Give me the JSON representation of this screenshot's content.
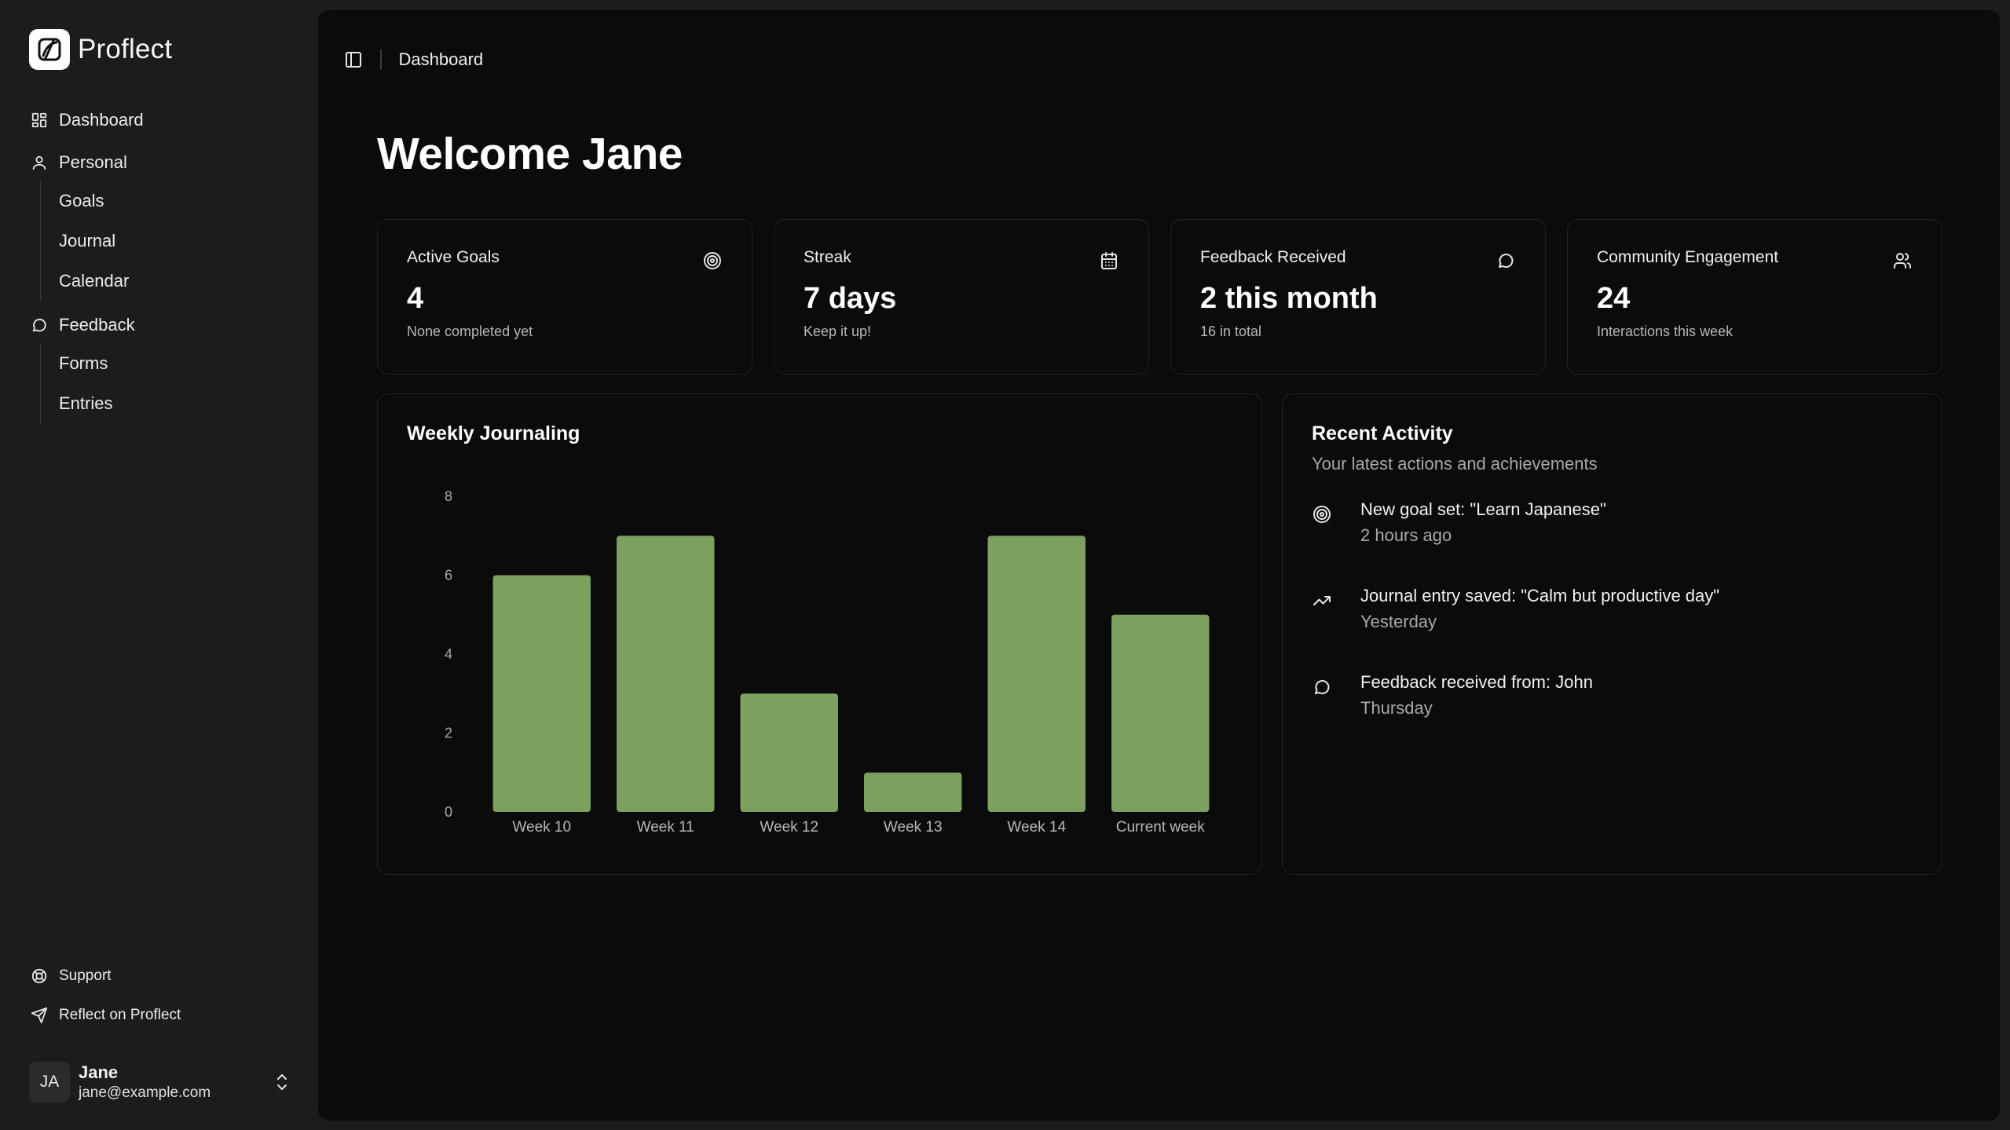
{
  "app": {
    "name": "Proflect"
  },
  "sidebar": {
    "dashboard_label": "Dashboard",
    "personal": {
      "label": "Personal",
      "items": [
        "Goals",
        "Journal",
        "Calendar"
      ]
    },
    "feedback": {
      "label": "Feedback",
      "items": [
        "Forms",
        "Entries"
      ]
    },
    "footer": {
      "support_label": "Support",
      "reflect_label": "Reflect on Proflect"
    },
    "user": {
      "initials": "JA",
      "name": "Jane",
      "email": "jane@example.com"
    }
  },
  "header": {
    "breadcrumb": "Dashboard"
  },
  "welcome": "Welcome Jane",
  "stats": [
    {
      "title": "Active Goals",
      "value": "4",
      "sub": "None completed yet",
      "icon": "target-icon"
    },
    {
      "title": "Streak",
      "value": "7 days",
      "sub": "Keep it up!",
      "icon": "calendar-icon"
    },
    {
      "title": "Feedback Received",
      "value": "2 this month",
      "sub": "16 in total",
      "icon": "chat-bubble-icon"
    },
    {
      "title": "Community Engagement",
      "value": "24",
      "sub": "Interactions this week",
      "icon": "users-icon"
    }
  ],
  "weekly_chart": {
    "title": "Weekly Journaling"
  },
  "chart_data": {
    "type": "bar",
    "title": "Weekly Journaling",
    "categories": [
      "Week 10",
      "Week 11",
      "Week 12",
      "Week 13",
      "Week 14",
      "Current week"
    ],
    "values": [
      6,
      7,
      3,
      1,
      7,
      5
    ],
    "ylim": [
      0,
      8
    ],
    "yticks": [
      "0",
      "2",
      "4",
      "6",
      "8"
    ],
    "grid": false,
    "bar_color": "#7ca15e"
  },
  "activity": {
    "title": "Recent Activity",
    "subtitle": "Your latest actions and achievements",
    "items": [
      {
        "text": "New goal set: \"Learn Japanese\"",
        "time": "2 hours ago",
        "icon": "target-icon"
      },
      {
        "text": "Journal entry saved: \"Calm but productive day\"",
        "time": "Yesterday",
        "icon": "trending-up-icon"
      },
      {
        "text": "Feedback received from: John",
        "time": "Thursday",
        "icon": "chat-bubble-icon"
      }
    ]
  },
  "colors": {
    "accent": "#7ca15e",
    "background": "#0b0b0b",
    "sidebar": "#1c1c1e"
  }
}
